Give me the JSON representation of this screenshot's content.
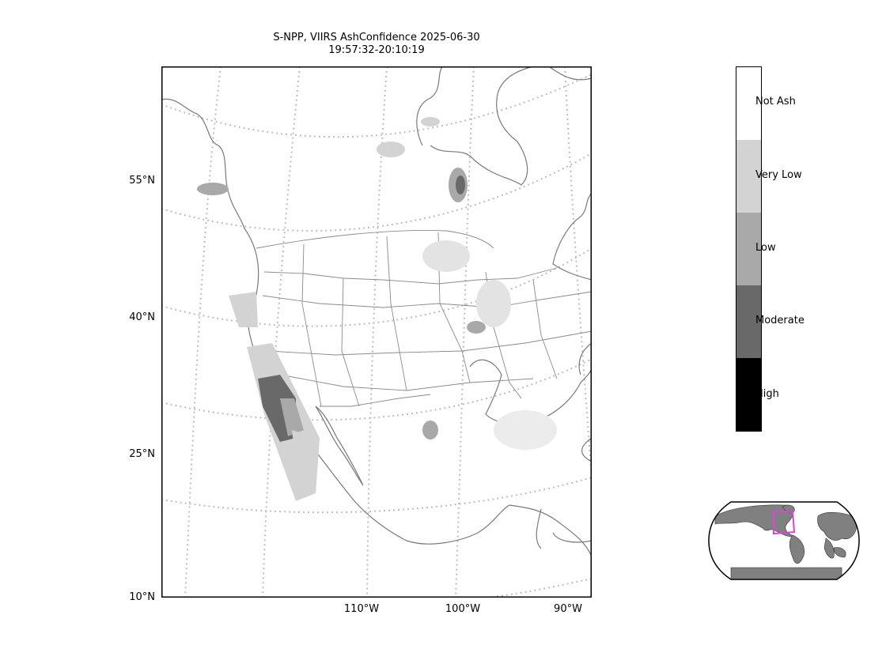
{
  "title": {
    "line1": "S-NPP, VIIRS AshConfidence 2025-06-30",
    "line2": "19:57:32-20:10:19"
  },
  "lat_labels": [
    "55°N",
    "40°N",
    "25°N",
    "10°N"
  ],
  "lon_labels": [
    "110°W",
    "100°W",
    "90°W"
  ],
  "colorbar": {
    "categories": [
      {
        "label": "Not Ash",
        "color": "#ffffff"
      },
      {
        "label": "Very Low",
        "color": "#d3d3d3"
      },
      {
        "label": "Low",
        "color": "#a9a9a9"
      },
      {
        "label": "Moderate",
        "color": "#696969"
      },
      {
        "label": "High",
        "color": "#000000"
      }
    ]
  },
  "colors": {
    "coastline": "#7a7a7a",
    "graticule": "#bdbdbd",
    "inset_land": "#808080",
    "inset_extent_box": "#e040e0"
  }
}
